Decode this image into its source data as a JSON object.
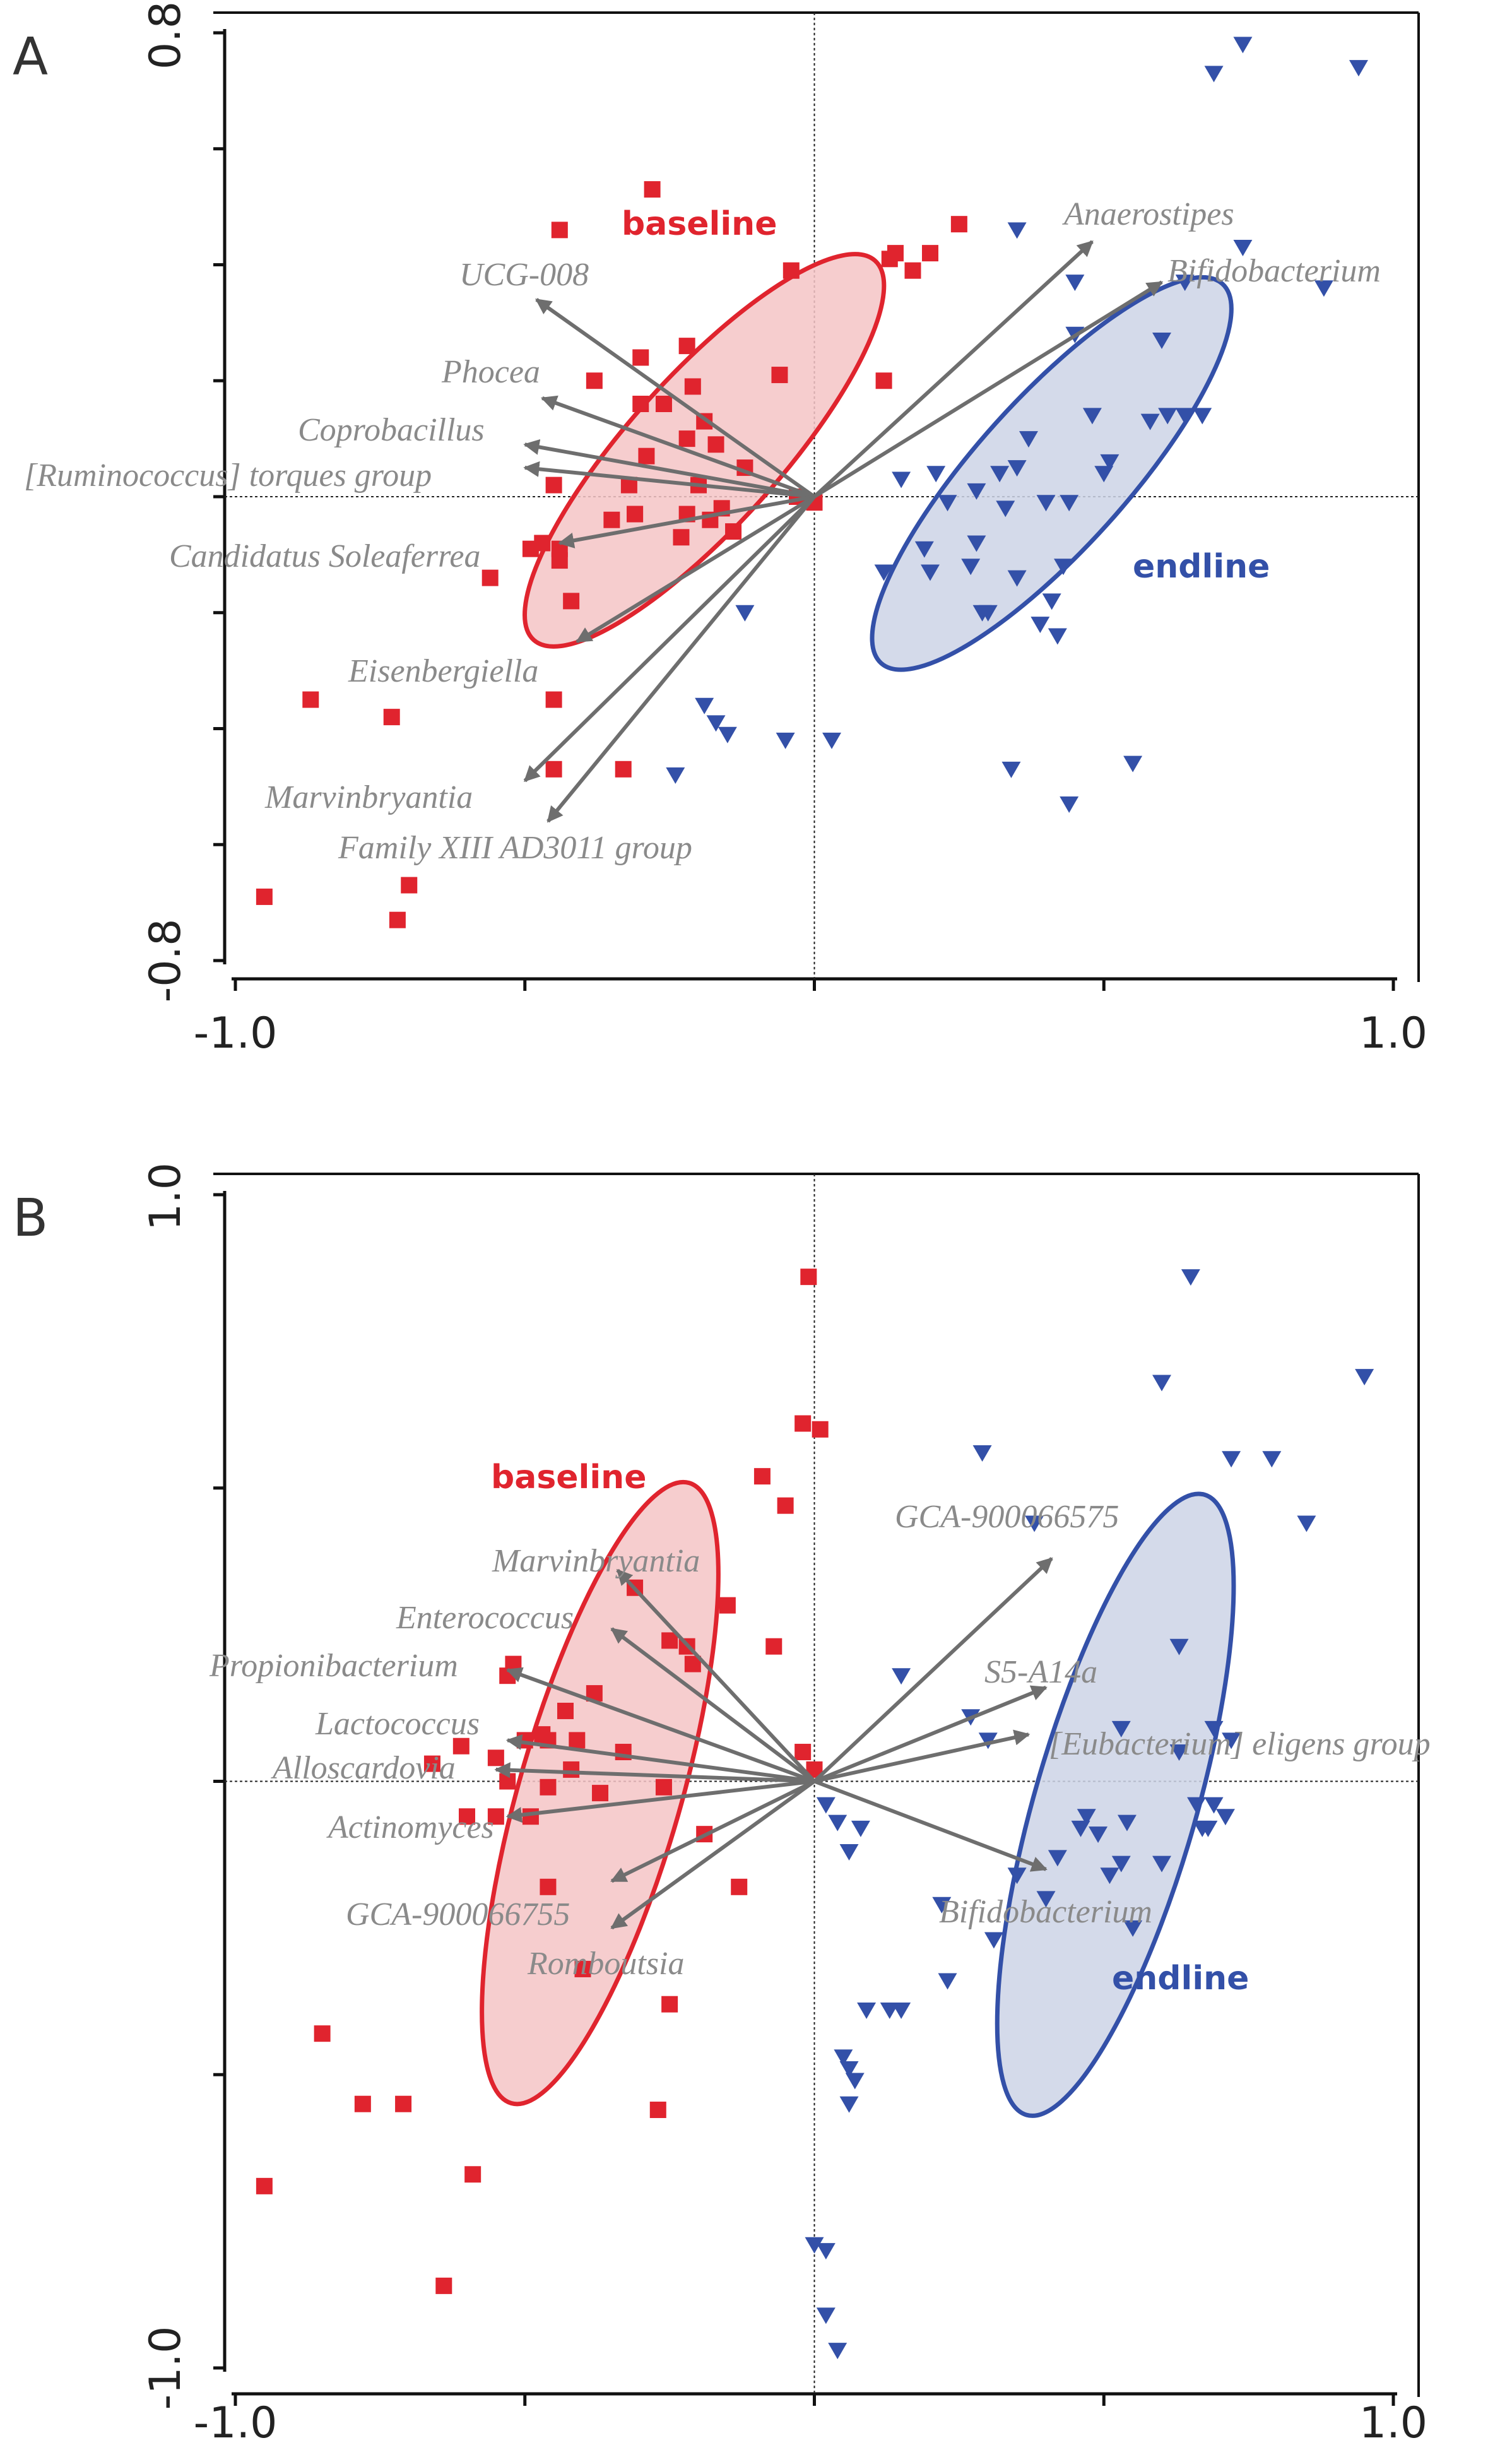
{
  "figure": {
    "colors": {
      "baseline": "#e0242e",
      "endline": "#3350a8",
      "baseline_fill": "#f5c4c6",
      "endline_fill": "#cdd3e6",
      "arrow": "#6e6e6e",
      "label": "#8a8a8a",
      "axis": "#111111"
    },
    "icons": {
      "baseline_marker": "square-marker",
      "endline_marker": "triangle-down-marker"
    }
  },
  "chart_data": [
    {
      "panel": "A",
      "type": "scatter",
      "title": "",
      "xlabel": "",
      "ylabel": "",
      "xlim": [
        -1.0,
        1.0
      ],
      "ylim": [
        -0.8,
        0.8
      ],
      "x_ticks": [
        -1.0,
        -0.5,
        0.0,
        0.5,
        1.0
      ],
      "y_ticks": [
        -0.8,
        -0.6,
        -0.4,
        -0.2,
        0.0,
        0.2,
        0.4,
        0.6,
        0.8
      ],
      "x_tick_labels": [
        "-1.0",
        "1.0"
      ],
      "y_tick_labels": [
        "0.8",
        "-0.8"
      ],
      "grid": false,
      "origin_lines": true,
      "group_labels": [
        {
          "text": "baseline",
          "group": "baseline",
          "x": -0.35,
          "y": 0.46
        },
        {
          "text": "endline",
          "group": "endline",
          "x": 0.55,
          "y": -0.11
        }
      ],
      "groups": [
        {
          "name": "baseline",
          "marker": "square",
          "ellipse": {
            "cx": -0.19,
            "cy": 0.08,
            "rx": 0.13,
            "ry": 0.44,
            "angle_deg": 42
          },
          "points": [
            [
              -0.44,
              0.46
            ],
            [
              -0.28,
              0.53
            ],
            [
              -0.04,
              0.39
            ],
            [
              -0.21,
              0.19
            ],
            [
              -0.38,
              0.2
            ],
            [
              -0.3,
              0.24
            ],
            [
              -0.22,
              0.26
            ],
            [
              -0.3,
              0.16
            ],
            [
              -0.26,
              0.16
            ],
            [
              -0.19,
              0.13
            ],
            [
              -0.22,
              0.1
            ],
            [
              -0.17,
              0.09
            ],
            [
              -0.06,
              0.21
            ],
            [
              -0.12,
              0.05
            ],
            [
              -0.45,
              0.02
            ],
            [
              -0.32,
              0.02
            ],
            [
              -0.35,
              -0.04
            ],
            [
              -0.22,
              -0.03
            ],
            [
              -0.31,
              -0.03
            ],
            [
              -0.23,
              -0.07
            ],
            [
              -0.29,
              0.07
            ],
            [
              -0.18,
              -0.04
            ],
            [
              -0.2,
              0.02
            ],
            [
              -0.16,
              -0.02
            ],
            [
              -0.14,
              -0.06
            ],
            [
              -0.49,
              -0.09
            ],
            [
              -0.44,
              -0.09
            ],
            [
              -0.47,
              -0.08
            ],
            [
              -0.44,
              -0.11
            ],
            [
              -0.42,
              -0.18
            ],
            [
              -0.56,
              -0.14
            ],
            [
              -0.31,
              -0.03
            ],
            [
              -0.45,
              -0.35
            ],
            [
              -0.87,
              -0.35
            ],
            [
              -0.73,
              -0.38
            ],
            [
              -0.33,
              -0.47
            ],
            [
              -0.45,
              -0.47
            ],
            [
              -0.95,
              -0.69
            ],
            [
              -0.7,
              -0.67
            ],
            [
              -0.72,
              -0.73
            ],
            [
              0.14,
              0.42
            ],
            [
              0.13,
              0.41
            ],
            [
              0.17,
              0.39
            ],
            [
              0.25,
              0.47
            ],
            [
              0.2,
              0.42
            ],
            [
              0.12,
              0.2
            ],
            [
              0.0,
              -0.01
            ],
            [
              -0.03,
              0.0
            ]
          ]
        },
        {
          "name": "endline",
          "marker": "triangle",
          "ellipse": {
            "cx": 0.41,
            "cy": 0.04,
            "rx": 0.13,
            "ry": 0.44,
            "angle_deg": 42
          },
          "points": [
            [
              0.69,
              0.73
            ],
            [
              0.74,
              0.78
            ],
            [
              0.94,
              0.74
            ],
            [
              0.35,
              0.46
            ],
            [
              0.45,
              0.37
            ],
            [
              0.64,
              0.37
            ],
            [
              0.88,
              0.36
            ],
            [
              0.74,
              0.43
            ],
            [
              0.45,
              0.28
            ],
            [
              0.6,
              0.27
            ],
            [
              0.67,
              0.14
            ],
            [
              0.61,
              0.14
            ],
            [
              0.64,
              0.14
            ],
            [
              0.58,
              0.13
            ],
            [
              0.48,
              0.14
            ],
            [
              0.37,
              0.1
            ],
            [
              0.51,
              0.06
            ],
            [
              0.35,
              0.05
            ],
            [
              0.32,
              0.04
            ],
            [
              0.21,
              0.04
            ],
            [
              0.15,
              0.03
            ],
            [
              0.5,
              0.04
            ],
            [
              0.4,
              -0.01
            ],
            [
              0.33,
              -0.02
            ],
            [
              0.23,
              -0.01
            ],
            [
              0.28,
              0.01
            ],
            [
              0.44,
              -0.01
            ],
            [
              0.28,
              -0.08
            ],
            [
              0.19,
              -0.09
            ],
            [
              0.27,
              -0.12
            ],
            [
              0.43,
              -0.12
            ],
            [
              0.35,
              -0.14
            ],
            [
              0.2,
              -0.13
            ],
            [
              0.12,
              -0.13
            ],
            [
              0.41,
              -0.18
            ],
            [
              0.29,
              -0.2
            ],
            [
              0.39,
              -0.22
            ],
            [
              0.42,
              -0.24
            ],
            [
              0.3,
              -0.2
            ],
            [
              -0.12,
              -0.2
            ],
            [
              -0.19,
              -0.36
            ],
            [
              -0.17,
              -0.39
            ],
            [
              -0.15,
              -0.41
            ],
            [
              -0.05,
              -0.42
            ],
            [
              -0.24,
              -0.48
            ],
            [
              0.03,
              -0.42
            ],
            [
              0.44,
              -0.53
            ],
            [
              0.34,
              -0.47
            ],
            [
              0.55,
              -0.46
            ]
          ]
        }
      ],
      "vectors": [
        {
          "label": "UCG-008",
          "x": -0.48,
          "y": 0.34
        },
        {
          "label": "Phocea",
          "x": -0.47,
          "y": 0.17
        },
        {
          "label": "Coprobacillus",
          "x": -0.5,
          "y": 0.09
        },
        {
          "label": "[Ruminococcus] torques group",
          "x": -0.5,
          "y": 0.05
        },
        {
          "label": "Candidatus Soleaferrea",
          "x": -0.44,
          "y": -0.08
        },
        {
          "label": "Eisenbergiella",
          "x": -0.41,
          "y": -0.25
        },
        {
          "label": "Marvinbryantia",
          "x": -0.5,
          "y": -0.49
        },
        {
          "label": "Family XIII AD3011 group",
          "x": -0.46,
          "y": -0.56
        },
        {
          "label": "Anaerostipes",
          "x": 0.48,
          "y": 0.44
        },
        {
          "label": "Bifidobacterium",
          "x": 0.6,
          "y": 0.37
        }
      ]
    },
    {
      "panel": "B",
      "type": "scatter",
      "title": "",
      "xlabel": "",
      "ylabel": "",
      "xlim": [
        -1.0,
        1.0
      ],
      "ylim": [
        -1.0,
        1.0
      ],
      "x_ticks": [
        -1.0,
        -0.5,
        0.0,
        0.5,
        1.0
      ],
      "y_ticks": [
        -1.0,
        -0.5,
        0.0,
        0.5,
        1.0
      ],
      "x_tick_labels": [
        "-1.0",
        "1.0"
      ],
      "y_tick_labels": [
        "1.0",
        "-1.0"
      ],
      "grid": false,
      "origin_lines": true,
      "group_labels": [
        {
          "text": "baseline",
          "group": "baseline",
          "x": -0.43,
          "y": 0.52
        },
        {
          "text": "endline",
          "group": "endline",
          "x": 0.61,
          "y": -0.33
        }
      ],
      "groups": [
        {
          "name": "baseline",
          "marker": "square",
          "ellipse": {
            "cx": -0.37,
            "cy": -0.02,
            "rx": 0.14,
            "ry": 0.55,
            "angle_deg": 16
          },
          "points": [
            [
              -0.01,
              0.86
            ],
            [
              -0.02,
              0.61
            ],
            [
              0.01,
              0.6
            ],
            [
              -0.09,
              0.52
            ],
            [
              -0.05,
              0.47
            ],
            [
              -0.15,
              0.3
            ],
            [
              -0.31,
              0.33
            ],
            [
              -0.25,
              0.24
            ],
            [
              -0.22,
              0.23
            ],
            [
              -0.21,
              0.2
            ],
            [
              -0.07,
              0.23
            ],
            [
              -0.52,
              0.2
            ],
            [
              -0.53,
              0.18
            ],
            [
              -0.38,
              0.15
            ],
            [
              -0.43,
              0.12
            ],
            [
              -0.47,
              0.08
            ],
            [
              -0.61,
              0.06
            ],
            [
              -0.55,
              0.04
            ],
            [
              -0.5,
              0.07
            ],
            [
              -0.46,
              0.07
            ],
            [
              -0.53,
              0.0
            ],
            [
              -0.42,
              0.02
            ],
            [
              -0.46,
              -0.01
            ],
            [
              -0.41,
              0.07
            ],
            [
              -0.33,
              0.05
            ],
            [
              -0.26,
              -0.01
            ],
            [
              -0.37,
              -0.02
            ],
            [
              -0.55,
              -0.06
            ],
            [
              -0.6,
              -0.06
            ],
            [
              -0.49,
              -0.06
            ],
            [
              -0.66,
              0.03
            ],
            [
              -0.19,
              -0.09
            ],
            [
              -0.46,
              -0.18
            ],
            [
              -0.13,
              -0.18
            ],
            [
              -0.4,
              -0.32
            ],
            [
              -0.25,
              -0.38
            ],
            [
              -0.85,
              -0.43
            ],
            [
              -0.78,
              -0.55
            ],
            [
              -0.71,
              -0.55
            ],
            [
              -0.95,
              -0.69
            ],
            [
              -0.59,
              -0.67
            ],
            [
              -0.64,
              -0.86
            ],
            [
              -0.27,
              -0.56
            ],
            [
              -0.02,
              0.05
            ],
            [
              0.0,
              0.02
            ]
          ]
        },
        {
          "name": "endline",
          "marker": "triangle",
          "ellipse": {
            "cx": 0.52,
            "cy": -0.04,
            "rx": 0.14,
            "ry": 0.55,
            "angle_deg": 16
          },
          "points": [
            [
              0.65,
              0.86
            ],
            [
              0.6,
              0.68
            ],
            [
              0.95,
              0.69
            ],
            [
              0.29,
              0.56
            ],
            [
              0.72,
              0.55
            ],
            [
              0.79,
              0.55
            ],
            [
              0.85,
              0.44
            ],
            [
              0.38,
              0.44
            ],
            [
              0.63,
              0.23
            ],
            [
              0.15,
              0.18
            ],
            [
              0.27,
              0.11
            ],
            [
              0.3,
              0.07
            ],
            [
              0.69,
              0.09
            ],
            [
              0.72,
              0.07
            ],
            [
              0.63,
              0.05
            ],
            [
              0.53,
              0.09
            ],
            [
              0.54,
              -0.07
            ],
            [
              0.47,
              -0.06
            ],
            [
              0.46,
              -0.08
            ],
            [
              0.49,
              -0.09
            ],
            [
              0.66,
              -0.04
            ],
            [
              0.69,
              -0.04
            ],
            [
              0.68,
              -0.08
            ],
            [
              0.71,
              -0.06
            ],
            [
              0.67,
              -0.08
            ],
            [
              0.6,
              -0.14
            ],
            [
              0.53,
              -0.14
            ],
            [
              0.42,
              -0.13
            ],
            [
              0.35,
              -0.16
            ],
            [
              0.22,
              -0.21
            ],
            [
              0.4,
              -0.2
            ],
            [
              0.51,
              -0.16
            ],
            [
              0.55,
              -0.25
            ],
            [
              0.31,
              -0.27
            ],
            [
              0.23,
              -0.34
            ],
            [
              0.13,
              -0.39
            ],
            [
              0.15,
              -0.39
            ],
            [
              0.09,
              -0.39
            ],
            [
              0.02,
              -0.04
            ],
            [
              0.04,
              -0.07
            ],
            [
              0.06,
              -0.12
            ],
            [
              0.08,
              -0.08
            ],
            [
              0.05,
              -0.47
            ],
            [
              0.06,
              -0.49
            ],
            [
              0.07,
              -0.51
            ],
            [
              0.06,
              -0.55
            ],
            [
              0.0,
              -0.79
            ],
            [
              0.02,
              -0.8
            ],
            [
              0.02,
              -0.91
            ],
            [
              0.04,
              -0.97
            ]
          ]
        }
      ],
      "vectors": [
        {
          "label": "Marvinbryantia",
          "x": -0.34,
          "y": 0.36
        },
        {
          "label": "Enterococcus",
          "x": -0.35,
          "y": 0.26
        },
        {
          "label": "Propionibacterium",
          "x": -0.53,
          "y": 0.19
        },
        {
          "label": "Lactococcus",
          "x": -0.53,
          "y": 0.07
        },
        {
          "label": "Alloscardovia",
          "x": -0.55,
          "y": 0.02
        },
        {
          "label": "Actinomyces",
          "x": -0.53,
          "y": -0.06
        },
        {
          "label": "GCA-900066755",
          "x": -0.35,
          "y": -0.17
        },
        {
          "label": "Romboutsia",
          "x": -0.35,
          "y": -0.25
        },
        {
          "label": "GCA-900066575",
          "x": 0.41,
          "y": 0.38
        },
        {
          "label": "S5-A14a",
          "x": 0.4,
          "y": 0.16
        },
        {
          "label": "[Eubacterium] eligens group",
          "x": 0.37,
          "y": 0.08
        },
        {
          "label": "Bifidobacterium",
          "x": 0.4,
          "y": -0.15
        }
      ]
    }
  ]
}
